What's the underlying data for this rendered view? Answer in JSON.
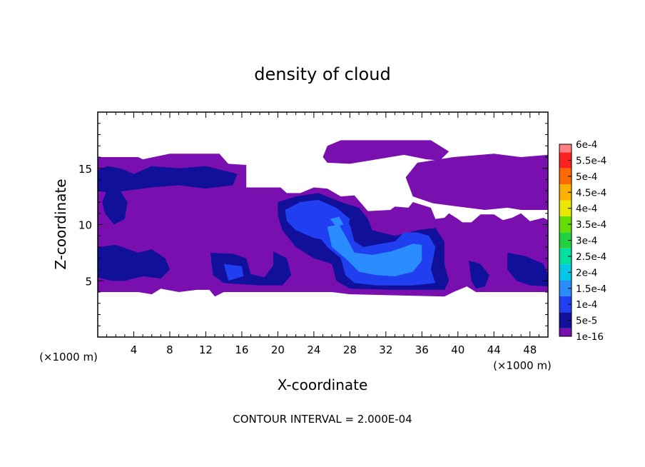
{
  "chart_data": {
    "type": "heatmap",
    "title": "density of cloud",
    "xlabel": "X-coordinate",
    "ylabel": "Z-coordinate",
    "x_unit": "(×1000 m)",
    "z_unit": "(×1000 m)",
    "footer": "CONTOUR INTERVAL = 2.000E-04",
    "xlim": [
      0,
      50
    ],
    "ylim": [
      0,
      20
    ],
    "x_ticks": [
      4,
      8,
      12,
      16,
      20,
      24,
      28,
      32,
      36,
      40,
      44,
      48
    ],
    "x_tick_labels": [
      "4",
      "8",
      "12",
      "16",
      "20",
      "24",
      "28",
      "32",
      "36",
      "40",
      "44",
      "48"
    ],
    "y_ticks": [
      5,
      10,
      15
    ],
    "y_tick_labels": [
      "5",
      "10",
      "15"
    ],
    "colorbar": {
      "levels": [
        {
          "label": "1e-16",
          "color": "#7a0fb0"
        },
        {
          "label": "5e-5",
          "color": "#10109a"
        },
        {
          "label": "1e-4",
          "color": "#1f3ff0"
        },
        {
          "label": "1.5e-4",
          "color": "#2a8cff"
        },
        {
          "label": "2e-4",
          "color": "#00c8e6"
        },
        {
          "label": "2.5e-4",
          "color": "#00e0a0"
        },
        {
          "label": "3e-4",
          "color": "#22d040"
        },
        {
          "label": "3.5e-4",
          "color": "#66dd00"
        },
        {
          "label": "4e-4",
          "color": "#e8e800"
        },
        {
          "label": "4.5e-4",
          "color": "#ffb000"
        },
        {
          "label": "5e-4",
          "color": "#ff6a00"
        },
        {
          "label": "5.5e-4",
          "color": "#ff2020"
        },
        {
          "label": "6e-4",
          "color": "#ff8080"
        }
      ]
    },
    "regions": [
      {
        "level": 0,
        "points": [
          [
            0,
            16
          ],
          [
            4.5,
            16
          ],
          [
            5,
            15.8
          ],
          [
            8,
            16.3
          ],
          [
            13.5,
            16.3
          ],
          [
            14.5,
            15.4
          ],
          [
            16.5,
            15.3
          ],
          [
            16.5,
            13.3
          ],
          [
            20.3,
            13.3
          ],
          [
            21,
            12.8
          ],
          [
            22.5,
            12.8
          ],
          [
            24,
            13.3
          ],
          [
            25.5,
            13.2
          ],
          [
            27,
            12.5
          ],
          [
            28.5,
            12.6
          ],
          [
            30,
            11.2
          ],
          [
            32.5,
            11.3
          ],
          [
            33,
            11.6
          ],
          [
            34.5,
            11.5
          ],
          [
            35,
            12
          ],
          [
            37,
            11.5
          ],
          [
            37.5,
            10.5
          ],
          [
            38.5,
            10.6
          ],
          [
            39,
            11
          ],
          [
            40,
            10.5
          ],
          [
            40.5,
            10.2
          ],
          [
            41.5,
            10.2
          ],
          [
            42.5,
            10.9
          ],
          [
            44,
            10.9
          ],
          [
            45,
            10.4
          ],
          [
            46,
            10.6
          ],
          [
            47,
            11
          ],
          [
            48,
            10.3
          ],
          [
            49.5,
            10.6
          ],
          [
            50,
            10.4
          ],
          [
            50,
            4
          ],
          [
            42,
            4
          ],
          [
            41,
            4.5
          ],
          [
            39.5,
            4
          ],
          [
            38.5,
            3.6
          ],
          [
            28,
            3.8
          ],
          [
            26,
            4
          ],
          [
            14,
            4
          ],
          [
            13,
            3.6
          ],
          [
            12.4,
            4.2
          ],
          [
            11,
            4.2
          ],
          [
            9,
            4
          ],
          [
            7,
            4.3
          ],
          [
            6,
            3.8
          ],
          [
            4.5,
            4
          ],
          [
            0,
            4
          ]
        ]
      },
      {
        "level": 0,
        "points": [
          [
            25,
            16
          ],
          [
            25.5,
            17
          ],
          [
            27,
            17.5
          ],
          [
            37,
            17.5
          ],
          [
            39,
            16.5
          ],
          [
            38,
            15.7
          ],
          [
            36.5,
            15.8
          ],
          [
            34,
            16.2
          ],
          [
            31,
            15.8
          ],
          [
            28,
            15.4
          ],
          [
            25.5,
            15.5
          ]
        ]
      },
      {
        "level": 0,
        "points": [
          [
            34.2,
            14.2
          ],
          [
            35.5,
            15.5
          ],
          [
            39.5,
            16
          ],
          [
            44,
            16.3
          ],
          [
            47,
            16
          ],
          [
            50,
            16.2
          ],
          [
            50,
            11.3
          ],
          [
            47,
            11.3
          ],
          [
            45.5,
            11.5
          ],
          [
            43,
            11.3
          ],
          [
            40,
            11.6
          ],
          [
            37.2,
            11.9
          ],
          [
            35,
            12.5
          ]
        ]
      },
      {
        "level": 1,
        "points": [
          [
            0,
            14.8
          ],
          [
            1,
            15.2
          ],
          [
            2.5,
            15
          ],
          [
            4,
            14.5
          ],
          [
            6,
            15.2
          ],
          [
            9,
            15
          ],
          [
            12,
            15.2
          ],
          [
            14,
            14.8
          ],
          [
            15.5,
            14.5
          ],
          [
            15,
            13.5
          ],
          [
            12,
            13.2
          ],
          [
            9,
            13.5
          ],
          [
            6,
            13.3
          ],
          [
            3,
            13
          ],
          [
            1.5,
            12.8
          ],
          [
            0,
            13
          ]
        ]
      },
      {
        "level": 1,
        "points": [
          [
            1,
            13
          ],
          [
            2.5,
            13
          ],
          [
            3.3,
            12
          ],
          [
            3,
            10.5
          ],
          [
            1.8,
            10
          ],
          [
            0.8,
            11
          ],
          [
            0.5,
            12
          ]
        ]
      },
      {
        "level": 1,
        "points": [
          [
            0,
            8
          ],
          [
            2,
            8.2
          ],
          [
            4.5,
            7.5
          ],
          [
            6,
            7.8
          ],
          [
            7.5,
            7
          ],
          [
            8,
            6
          ],
          [
            7,
            5.2
          ],
          [
            5,
            5.4
          ],
          [
            3,
            5
          ],
          [
            1.5,
            5
          ],
          [
            0,
            5.3
          ]
        ]
      },
      {
        "level": 1,
        "points": [
          [
            12.5,
            7.5
          ],
          [
            15,
            7.4
          ],
          [
            16.5,
            7
          ],
          [
            17,
            5.6
          ],
          [
            18.5,
            5.3
          ],
          [
            19.5,
            6.4
          ],
          [
            19.5,
            7.6
          ],
          [
            21,
            7
          ],
          [
            21.5,
            5.5
          ],
          [
            20.5,
            4.6
          ],
          [
            18,
            4.6
          ],
          [
            14,
            4.8
          ],
          [
            12.8,
            5.5
          ]
        ]
      },
      {
        "level": 1,
        "points": [
          [
            20,
            12
          ],
          [
            22,
            12.5
          ],
          [
            24.5,
            12.8
          ],
          [
            27,
            12
          ],
          [
            29,
            11.5
          ],
          [
            30,
            10.5
          ],
          [
            30.5,
            9.5
          ],
          [
            33,
            9
          ],
          [
            35.5,
            9.5
          ],
          [
            37.5,
            9.7
          ],
          [
            38.5,
            8.5
          ],
          [
            38.5,
            6.5
          ],
          [
            39,
            5
          ],
          [
            38.5,
            4.2
          ],
          [
            33,
            4.2
          ],
          [
            28,
            4.3
          ],
          [
            26.5,
            5
          ],
          [
            26,
            6.5
          ],
          [
            24,
            7
          ],
          [
            22,
            8
          ],
          [
            20.5,
            9.5
          ],
          [
            20,
            10.8
          ]
        ]
      },
      {
        "level": 1,
        "points": [
          [
            41.2,
            6.8
          ],
          [
            42.5,
            6.5
          ],
          [
            43.5,
            5.5
          ],
          [
            43,
            4.5
          ],
          [
            42,
            4.3
          ],
          [
            41.5,
            5
          ]
        ]
      },
      {
        "level": 1,
        "points": [
          [
            45.5,
            7.5
          ],
          [
            47.5,
            7.2
          ],
          [
            49.5,
            6.5
          ],
          [
            50,
            5.5
          ],
          [
            50,
            4.5
          ],
          [
            48,
            4.6
          ],
          [
            46.5,
            5
          ],
          [
            45.5,
            6
          ]
        ]
      },
      {
        "level": 2,
        "points": [
          [
            20.8,
            11.3
          ],
          [
            22.5,
            12
          ],
          [
            24.5,
            12.2
          ],
          [
            26.5,
            11.5
          ],
          [
            28,
            10.5
          ],
          [
            27.5,
            9
          ],
          [
            26,
            8.5
          ],
          [
            24,
            8.8
          ],
          [
            22,
            9.5
          ],
          [
            21,
            10.3
          ]
        ]
      },
      {
        "level": 2,
        "points": [
          [
            24.5,
            10.5
          ],
          [
            26.5,
            10.8
          ],
          [
            28,
            10
          ],
          [
            28.5,
            8.5
          ],
          [
            29.5,
            8
          ],
          [
            31.5,
            8.3
          ],
          [
            33,
            8.5
          ],
          [
            34,
            9.3
          ],
          [
            35.5,
            9.3
          ],
          [
            36.8,
            9
          ],
          [
            37.5,
            8
          ],
          [
            37,
            6
          ],
          [
            37.5,
            4.8
          ],
          [
            35,
            4.6
          ],
          [
            31,
            4.6
          ],
          [
            28.5,
            4.8
          ],
          [
            27.5,
            5.5
          ],
          [
            27,
            7
          ],
          [
            25.5,
            8
          ],
          [
            24.5,
            9
          ]
        ]
      },
      {
        "level": 2,
        "points": [
          [
            14,
            6.5
          ],
          [
            16,
            6.3
          ],
          [
            16.2,
            5.4
          ],
          [
            14.5,
            5
          ]
        ]
      },
      {
        "level": 3,
        "points": [
          [
            25.5,
            9.8
          ],
          [
            26.8,
            10
          ],
          [
            27.5,
            9
          ],
          [
            28.5,
            7.5
          ],
          [
            30.5,
            7.3
          ],
          [
            32.5,
            7.6
          ],
          [
            34,
            8
          ],
          [
            35,
            8.3
          ],
          [
            36,
            8.2
          ],
          [
            36,
            6.8
          ],
          [
            35,
            5.8
          ],
          [
            33,
            5.4
          ],
          [
            31,
            5.5
          ],
          [
            29,
            5.8
          ],
          [
            27.5,
            7
          ],
          [
            26,
            8
          ]
        ]
      },
      {
        "level": 3,
        "points": [
          [
            25.8,
            10.5
          ],
          [
            26.8,
            10.7
          ],
          [
            27.3,
            10
          ],
          [
            26.5,
            9.8
          ]
        ]
      }
    ]
  }
}
